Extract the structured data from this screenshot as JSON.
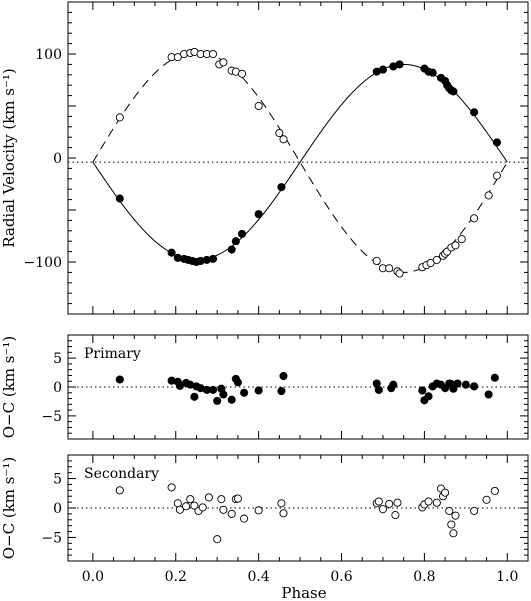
{
  "chart_data": [
    {
      "id": "rv",
      "type": "scatter",
      "ylabel": "Radial Velocity (km s⁻¹)",
      "xlim": [
        -0.06,
        1.05
      ],
      "ylim": [
        -150,
        150
      ],
      "yticks": [
        -100,
        0,
        100
      ],
      "systemic_velocity": -4,
      "series": [
        {
          "style": "filled",
          "x": [
            0.065,
            0.19,
            0.205,
            0.22,
            0.23,
            0.24,
            0.25,
            0.26,
            0.275,
            0.29,
            0.335,
            0.345,
            0.36,
            0.4,
            0.455,
            0.685,
            0.7,
            0.725,
            0.74,
            0.8,
            0.81,
            0.82,
            0.84,
            0.85,
            0.855,
            0.86,
            0.865,
            0.87,
            0.92,
            0.975
          ],
          "y": [
            -39,
            -91,
            -96,
            -97,
            -98,
            -99,
            -100,
            -99,
            -98,
            -97,
            -88,
            -80,
            -73,
            -54,
            -28,
            83,
            85,
            88,
            90,
            86,
            83,
            82,
            77,
            74,
            70,
            67,
            65,
            64,
            44,
            15
          ]
        },
        {
          "style": "open",
          "x": [
            0.065,
            0.19,
            0.205,
            0.22,
            0.235,
            0.245,
            0.26,
            0.275,
            0.29,
            0.305,
            0.315,
            0.335,
            0.345,
            0.36,
            0.4,
            0.45,
            0.46,
            0.685,
            0.7,
            0.715,
            0.735,
            0.74,
            0.795,
            0.805,
            0.815,
            0.83,
            0.845,
            0.85,
            0.855,
            0.865,
            0.875,
            0.89,
            0.92,
            0.955,
            0.975
          ],
          "y": [
            39,
            97,
            97,
            100,
            101,
            102,
            100,
            100,
            100,
            90,
            92,
            84,
            83,
            81,
            50,
            24,
            18,
            -99,
            -106,
            -106,
            -109,
            -111,
            -105,
            -103,
            -101,
            -98,
            -94,
            -92,
            -90,
            -86,
            -84,
            -78,
            -58,
            -36,
            -17
          ]
        }
      ]
    },
    {
      "id": "primary",
      "type": "scatter",
      "label": "Primary",
      "ylabel": "O−C (km s⁻¹)",
      "xlim": [
        -0.06,
        1.05
      ],
      "ylim": [
        -9,
        9
      ],
      "yticks": [
        -5,
        0,
        5
      ],
      "series": [
        {
          "style": "filled",
          "x": [
            0.065,
            0.19,
            0.205,
            0.21,
            0.225,
            0.235,
            0.245,
            0.25,
            0.26,
            0.275,
            0.29,
            0.3,
            0.31,
            0.315,
            0.335,
            0.345,
            0.35,
            0.365,
            0.4,
            0.455,
            0.46,
            0.685,
            0.69,
            0.72,
            0.725,
            0.795,
            0.8,
            0.81,
            0.82,
            0.83,
            0.84,
            0.85,
            0.86,
            0.865,
            0.87,
            0.88,
            0.9,
            0.92,
            0.955,
            0.97
          ],
          "y": [
            1.3,
            1.1,
            0.9,
            0.2,
            0.7,
            0.4,
            -1.7,
            0.1,
            -0.2,
            -0.5,
            -0.5,
            -2.4,
            -0.3,
            -1.3,
            -2.2,
            1.4,
            0.8,
            -1.0,
            -0.6,
            -0.7,
            1.9,
            0.6,
            -0.5,
            -0.2,
            0.4,
            -0.6,
            -2.3,
            -1.6,
            0.1,
            0.6,
            0.4,
            -0.2,
            0.6,
            0.5,
            -0.3,
            0.6,
            0.4,
            0.1,
            -1.3,
            1.6
          ]
        }
      ]
    },
    {
      "id": "secondary",
      "type": "scatter",
      "label": "Secondary",
      "ylabel": "O−C (km s⁻¹)",
      "xlabel": "Phase",
      "xlim": [
        -0.06,
        1.05
      ],
      "ylim": [
        -9,
        9
      ],
      "yticks": [
        -5,
        0,
        5
      ],
      "xticks": [
        "0.0",
        "0.2",
        "0.4",
        "0.6",
        "0.8",
        "1.0"
      ],
      "series": [
        {
          "style": "open",
          "x": [
            0.065,
            0.19,
            0.205,
            0.21,
            0.225,
            0.235,
            0.245,
            0.255,
            0.265,
            0.28,
            0.3,
            0.31,
            0.315,
            0.335,
            0.345,
            0.35,
            0.365,
            0.4,
            0.455,
            0.46,
            0.685,
            0.69,
            0.7,
            0.715,
            0.73,
            0.735,
            0.795,
            0.8,
            0.81,
            0.83,
            0.84,
            0.845,
            0.85,
            0.86,
            0.865,
            0.87,
            0.875,
            0.92,
            0.95,
            0.97
          ],
          "y": [
            3.0,
            3.5,
            0.8,
            -0.3,
            0.3,
            1.5,
            0.4,
            -0.5,
            0.1,
            1.8,
            -5.3,
            1.5,
            -0.3,
            -1.0,
            1.5,
            1.6,
            -1.8,
            -0.4,
            0.8,
            -0.9,
            0.8,
            1.1,
            -0.2,
            0.7,
            -1.2,
            0.9,
            0.1,
            0.6,
            1.1,
            0.9,
            3.3,
            2.0,
            2.6,
            -0.5,
            -2.8,
            -4.3,
            -1.3,
            -0.5,
            1.4,
            2.9
          ]
        }
      ]
    }
  ]
}
